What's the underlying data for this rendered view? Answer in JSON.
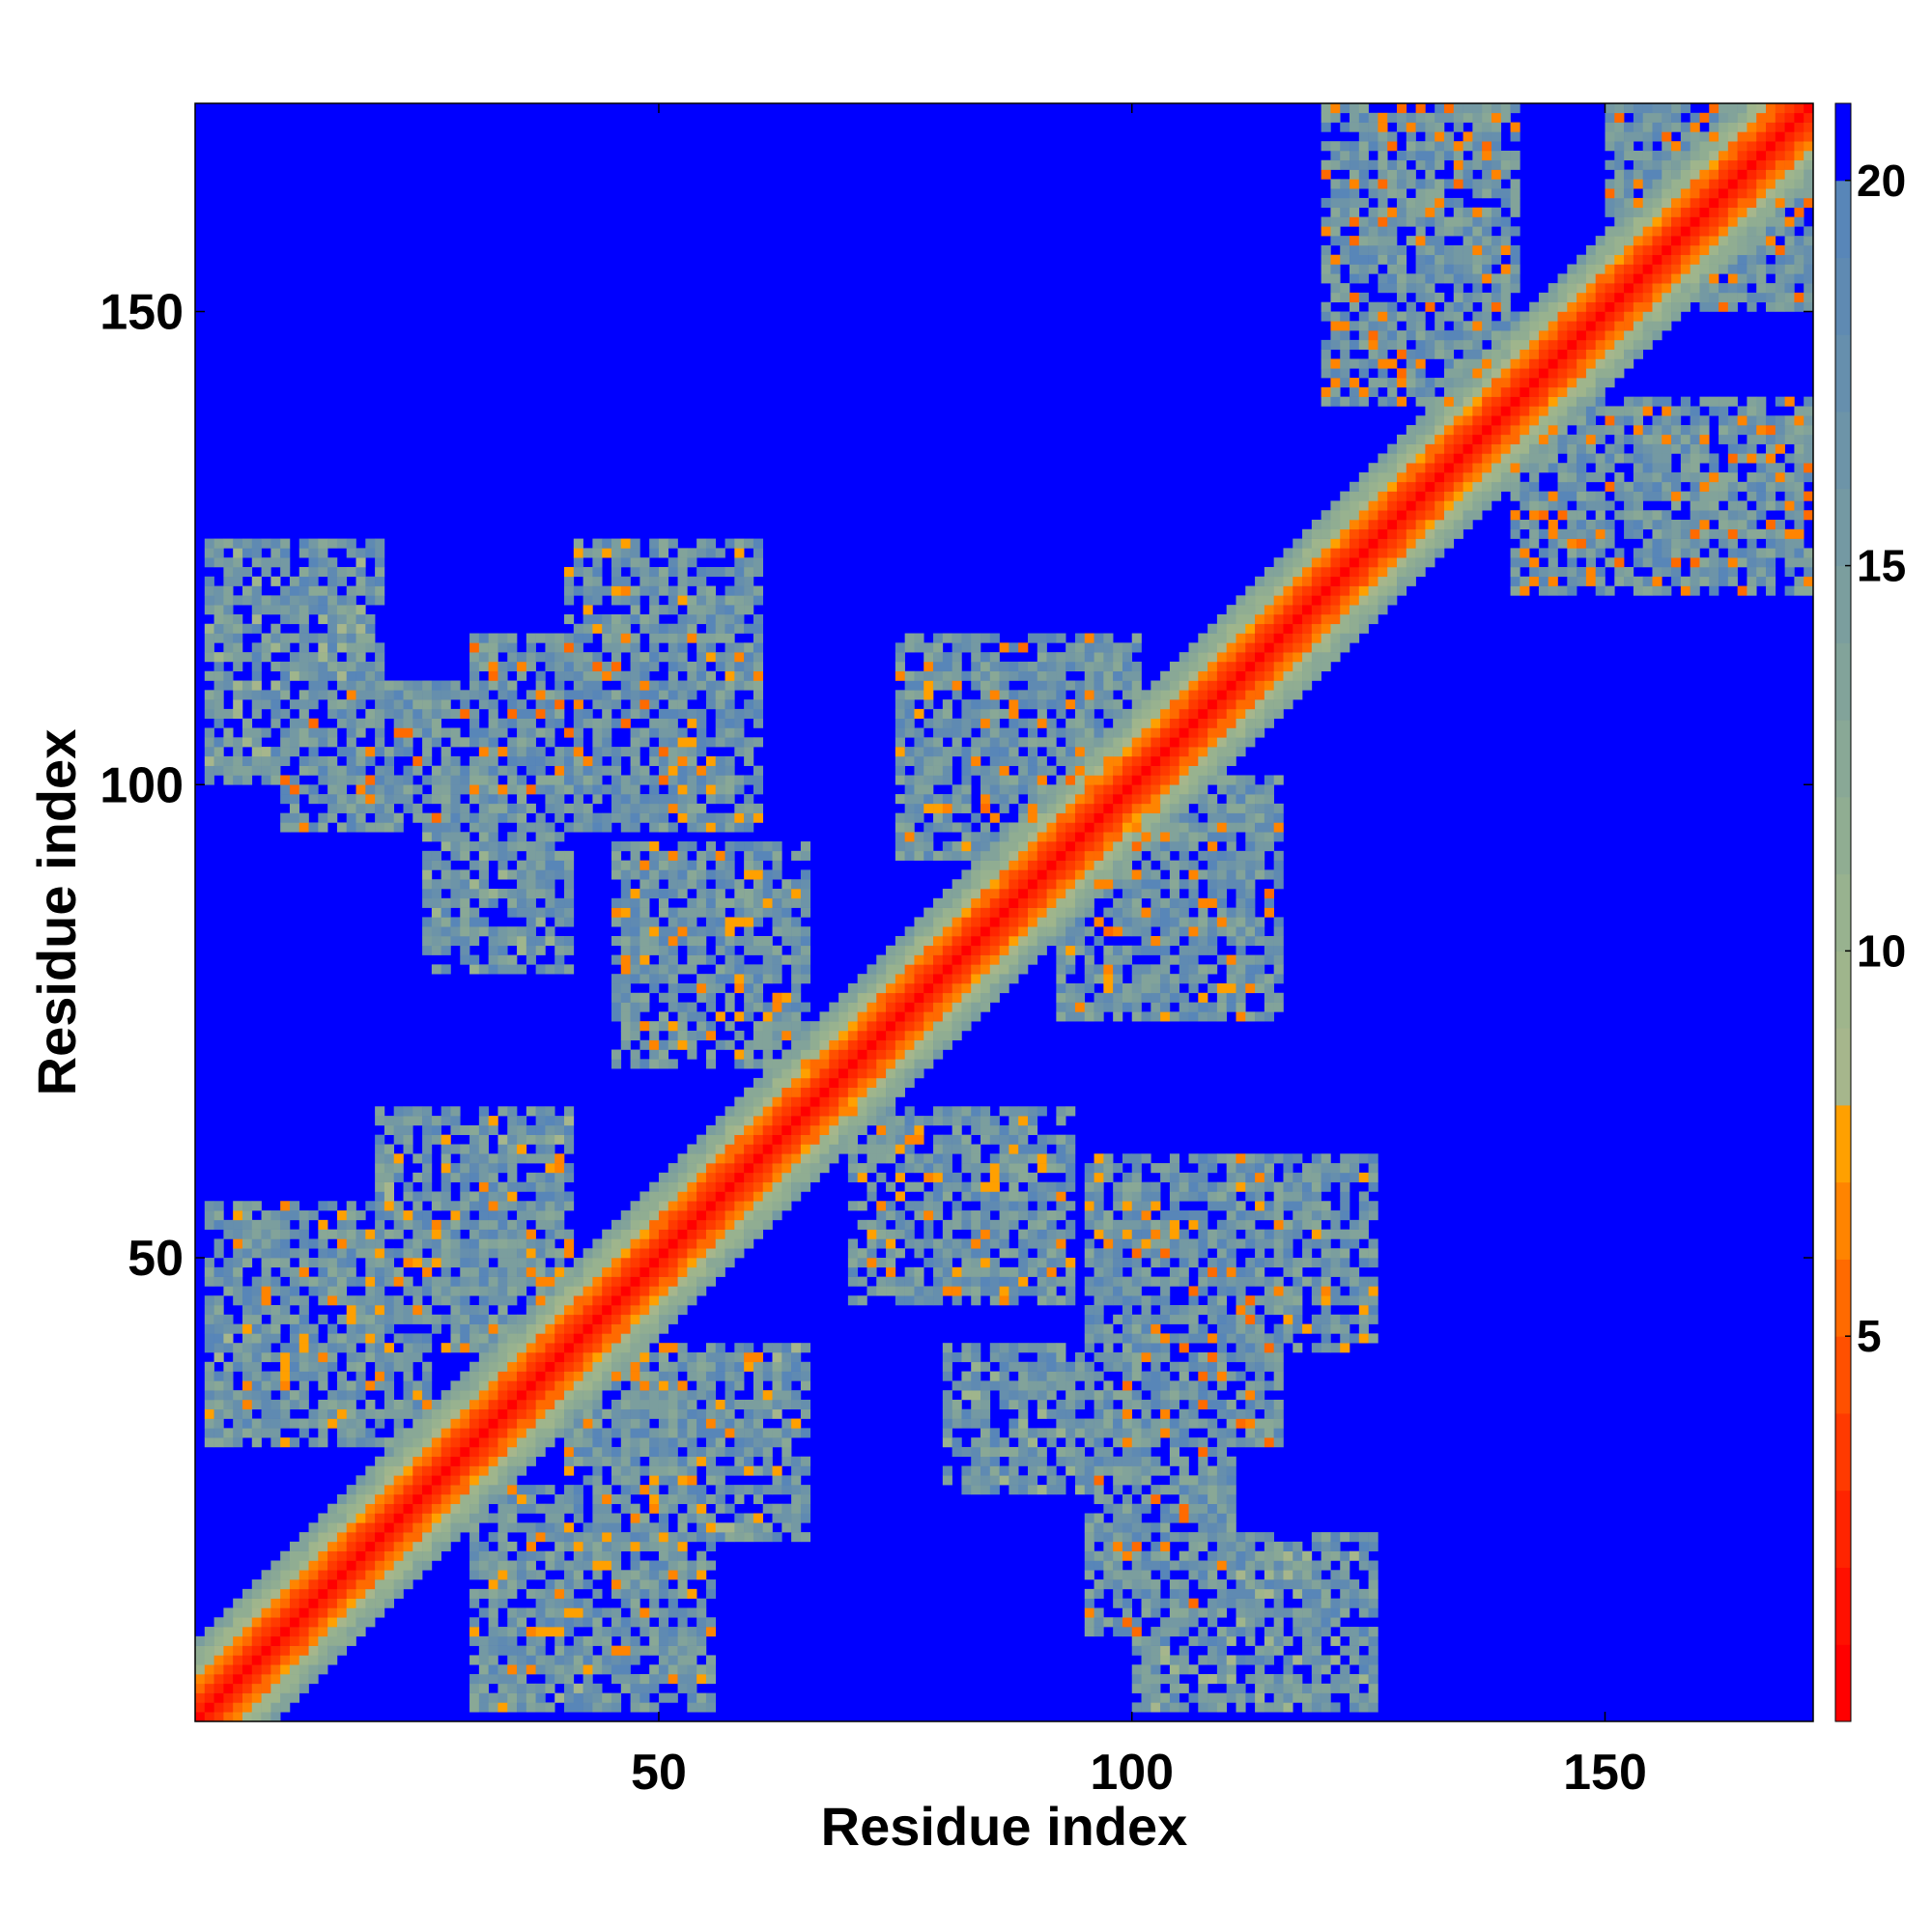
{
  "chart_data": {
    "type": "heatmap",
    "title": "",
    "xlabel": "Residue index",
    "ylabel": "Residue index",
    "n_residues": 171,
    "xlim": [
      1,
      172
    ],
    "ylim": [
      1,
      172
    ],
    "x_ticks": [
      50,
      100,
      150
    ],
    "y_ticks": [
      50,
      100,
      150
    ],
    "x_tick_labels": [
      "50",
      "100",
      "150"
    ],
    "y_tick_labels": [
      "50",
      "100",
      "150"
    ],
    "colorbar": {
      "range": [
        0,
        21
      ],
      "ticks": [
        5,
        10,
        15,
        20
      ],
      "tick_labels": [
        "5",
        "10",
        "15",
        "20"
      ],
      "levels": [
        {
          "max": 1,
          "color": "#ff0000"
        },
        {
          "max": 2,
          "color": "#ff1000"
        },
        {
          "max": 3,
          "color": "#ff2400"
        },
        {
          "max": 4,
          "color": "#ff3a00"
        },
        {
          "max": 5,
          "color": "#ff5000"
        },
        {
          "max": 6,
          "color": "#ff6a00"
        },
        {
          "max": 7,
          "color": "#ff8400"
        },
        {
          "max": 8,
          "color": "#ffa000"
        },
        {
          "max": 9,
          "color": "#a6b68c"
        },
        {
          "max": 10,
          "color": "#9fb58c"
        },
        {
          "max": 11,
          "color": "#98b28f"
        },
        {
          "max": 12,
          "color": "#90ad92"
        },
        {
          "max": 13,
          "color": "#89a896"
        },
        {
          "max": 14,
          "color": "#82a39a"
        },
        {
          "max": 15,
          "color": "#7b9e9e"
        },
        {
          "max": 16,
          "color": "#7499a3"
        },
        {
          "max": 17,
          "color": "#6d94a8"
        },
        {
          "max": 18,
          "color": "#668fad"
        },
        {
          "max": 19,
          "color": "#5f8ab2"
        },
        {
          "max": 20,
          "color": "#5886b8"
        },
        {
          "max": 21,
          "color": "#0000ff"
        }
      ]
    },
    "distance_unit_note": "",
    "contact_clusters": [
      {
        "x": [
          30,
          50
        ],
        "y": [
          100,
          115
        ],
        "min_value": 5
      },
      {
        "x": [
          2,
          20
        ],
        "y": [
          100,
          125
        ],
        "min_value": 8
      },
      {
        "x": [
          25,
          40
        ],
        "y": [
          88,
          100
        ],
        "min_value": 9
      },
      {
        "x": [
          45,
          65
        ],
        "y": [
          70,
          93
        ],
        "min_value": 6
      },
      {
        "x": [
          75,
          90
        ],
        "y": [
          92,
          115
        ],
        "min_value": 6
      },
      {
        "x": [
          70,
          90
        ],
        "y": [
          50,
          65
        ],
        "min_value": 6
      },
      {
        "x": [
          95,
          115
        ],
        "y": [
          80,
          100
        ],
        "min_value": 5
      },
      {
        "x": [
          95,
          125
        ],
        "y": [
          40,
          60
        ],
        "min_value": 6
      },
      {
        "x": [
          95,
          110
        ],
        "y": [
          10,
          45
        ],
        "min_value": 5
      },
      {
        "x": [
          80,
          90
        ],
        "y": [
          25,
          40
        ],
        "min_value": 9
      },
      {
        "x": [
          20,
          40
        ],
        "y": [
          45,
          65
        ],
        "min_value": 7
      },
      {
        "x": [
          2,
          25
        ],
        "y": [
          30,
          55
        ],
        "min_value": 7
      },
      {
        "x": [
          40,
          60
        ],
        "y": [
          25,
          40
        ],
        "min_value": 6
      },
      {
        "x": [
          30,
          55
        ],
        "y": [
          5,
          25
        ],
        "min_value": 6
      },
      {
        "x": [
          120,
          140
        ],
        "y": [
          140,
          171
        ],
        "min_value": 5
      },
      {
        "x": [
          140,
          165
        ],
        "y": [
          120,
          140
        ],
        "min_value": 6
      },
      {
        "x": [
          150,
          171
        ],
        "y": [
          150,
          171
        ],
        "min_value": 5
      }
    ]
  }
}
